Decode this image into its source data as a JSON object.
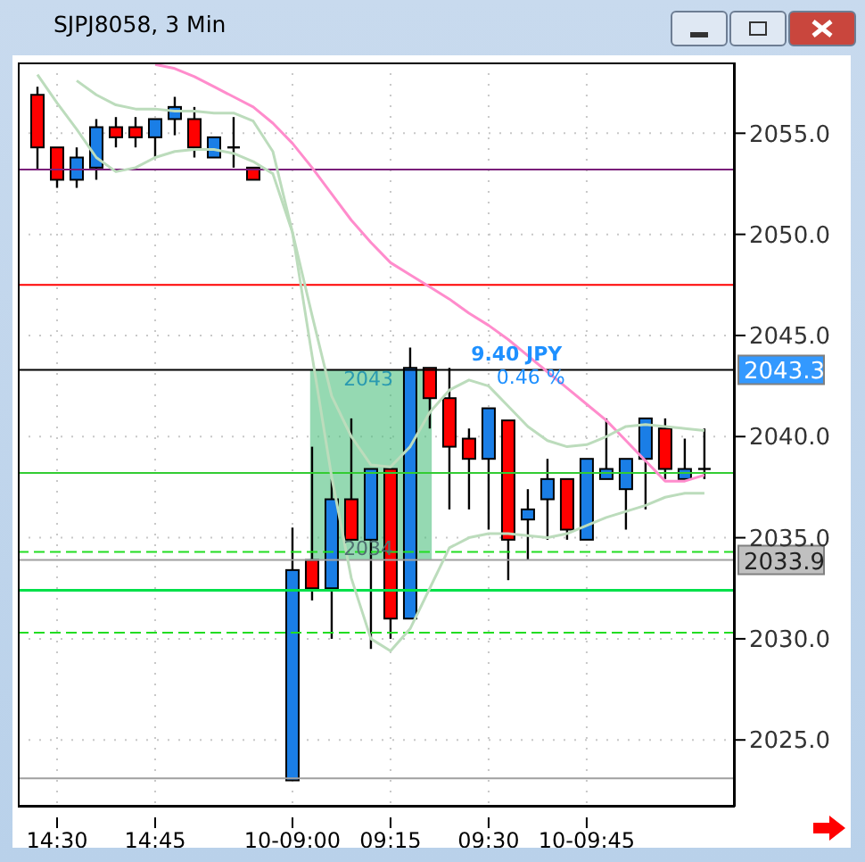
{
  "chart_data": {
    "type": "candlestick",
    "title": "SJPJ8058, 3 Min",
    "categories": [
      null,
      "14:30",
      null,
      null,
      null,
      null,
      "14:45",
      null,
      null,
      null,
      null,
      null,
      null,
      "10-09:00",
      null,
      null,
      null,
      null,
      "09:15",
      null,
      null,
      null,
      null,
      "09:30",
      null,
      null,
      null,
      null,
      "10-09:45",
      null,
      null,
      null,
      null,
      null,
      null
    ],
    "ohlc": [
      [
        2056.9,
        2057.3,
        2053.2,
        2054.3
      ],
      [
        2054.3,
        2054.3,
        2052.3,
        2052.7
      ],
      [
        2052.7,
        2054.3,
        2052.3,
        2053.8
      ],
      [
        2053.3,
        2055.7,
        2052.7,
        2055.3
      ],
      [
        2055.3,
        2055.8,
        2054.3,
        2054.8
      ],
      [
        2055.3,
        2055.8,
        2054.3,
        2054.8
      ],
      [
        2054.8,
        2055.7,
        2053.8,
        2055.7
      ],
      [
        2055.7,
        2056.8,
        2054.9,
        2056.3
      ],
      [
        2055.7,
        2056.3,
        2053.8,
        2054.3
      ],
      [
        2053.8,
        2054.8,
        2053.8,
        2054.8
      ],
      [
        2054.3,
        2055.8,
        2053.3,
        2054.3
      ],
      [
        2053.3,
        2053.3,
        2052.7,
        2052.7
      ],
      null,
      [
        2023.0,
        2035.5,
        2023.0,
        2033.4
      ],
      [
        2033.9,
        2039.5,
        2031.9,
        2032.5
      ],
      [
        2032.5,
        2037.9,
        2030.0,
        2036.9
      ],
      [
        2036.9,
        2040.9,
        2034.9,
        2034.9
      ],
      [
        2034.9,
        2038.4,
        2029.5,
        2038.4
      ],
      [
        2038.4,
        2038.4,
        2030.0,
        2031.0
      ],
      [
        2031.0,
        2044.4,
        2031.0,
        2043.4
      ],
      [
        2043.4,
        2043.4,
        2040.4,
        2041.9
      ],
      [
        2041.9,
        2043.4,
        2036.4,
        2039.5
      ],
      [
        2039.9,
        2040.4,
        2036.4,
        2038.9
      ],
      [
        2038.9,
        2041.4,
        2035.4,
        2041.4
      ],
      [
        2040.8,
        2040.8,
        2032.9,
        2034.9
      ],
      [
        2035.9,
        2037.4,
        2033.9,
        2036.4
      ],
      [
        2036.9,
        2038.9,
        2034.9,
        2037.9
      ],
      [
        2037.9,
        2037.9,
        2034.9,
        2035.4
      ],
      [
        2034.9,
        2038.9,
        2034.9,
        2038.9
      ],
      [
        2037.9,
        2040.9,
        2037.9,
        2038.4
      ],
      [
        2037.4,
        2038.9,
        2035.4,
        2038.9
      ],
      [
        2038.9,
        2040.9,
        2036.4,
        2040.9
      ],
      [
        2040.4,
        2040.9,
        2037.9,
        2038.4
      ],
      [
        2037.9,
        2039.9,
        2037.9,
        2038.4
      ],
      [
        2038.4,
        2040.4,
        2037.9,
        2038.4
      ]
    ],
    "colors": [
      "#ff0000",
      "#ff0000",
      "#1a7ee6",
      "#1a7ee6",
      "#ff0000",
      "#ff0000",
      "#1a7ee6",
      "#1a7ee6",
      "#ff0000",
      "#1a7ee6",
      "#000000",
      "#ff0000",
      null,
      "#1a7ee6",
      "#ff0000",
      "#1a7ee6",
      "#ff0000",
      "#1a7ee6",
      "#ff0000",
      "#1a7ee6",
      "#ff0000",
      "#ff0000",
      "#ff0000",
      "#1a7ee6",
      "#ff0000",
      "#1a7ee6",
      "#1a7ee6",
      "#ff0000",
      "#1a7ee6",
      "#1a7ee6",
      "#1a7ee6",
      "#1a7ee6",
      "#ff0000",
      "#1a7ee6",
      "#000000"
    ],
    "series": [
      {
        "type": "line",
        "color": "#ff8ccc",
        "values": [
          null,
          null,
          null,
          null,
          null,
          null,
          2058.4,
          2058.2,
          2057.8,
          2057.3,
          2056.8,
          2056.3,
          2055.5,
          2054.5,
          2053.3,
          2052.0,
          2050.7,
          2049.6,
          2048.6,
          2048.0,
          2047.4,
          2046.8,
          2046.1,
          2045.5,
          2044.8,
          2044.0,
          2043.2,
          2042.4,
          2041.6,
          2040.8,
          2039.8,
          2038.8,
          2037.8,
          2037.8,
          2038.1
        ]
      },
      {
        "type": "line",
        "color": "#bcdcbc",
        "values": [
          null,
          null,
          2057.6,
          2056.9,
          2056.4,
          2056.2,
          2056.2,
          2056.1,
          2056.1,
          2056.0,
          2056.0,
          2055.6,
          2054.1,
          2050.1,
          2046.0,
          2042.0,
          2040.0,
          2038.6,
          2038.5,
          2039.5,
          2041.2,
          2042.3,
          2042.8,
          2042.5,
          2041.5,
          2040.5,
          2039.8,
          2039.5,
          2039.6,
          2040.0,
          2040.5,
          2040.6,
          2040.5,
          2040.4,
          2040.3
        ]
      },
      {
        "type": "line",
        "color": "#bcdcbc",
        "values": [
          2057.9,
          2056.5,
          2055.2,
          2053.8,
          2053.1,
          2053.3,
          2053.8,
          2054.1,
          2054.2,
          2054.2,
          2054.0,
          2053.6,
          2053.0,
          2050.1,
          2044.0,
          2038.0,
          2033.0,
          2030.0,
          2029.4,
          2030.5,
          2032.5,
          2034.5,
          2035.0,
          2035.2,
          2035.2,
          2035.1,
          2035.0,
          2035.2,
          2035.6,
          2036.0,
          2036.3,
          2036.6,
          2037.0,
          2037.2,
          2037.2
        ]
      }
    ],
    "ylim": [
      2021.7,
      2058.5
    ],
    "yticks": [
      {
        "value": 2025,
        "label": "2025.0"
      },
      {
        "value": 2030,
        "label": "2030.0"
      },
      {
        "value": 2035,
        "label": "2035.0"
      },
      {
        "value": 2040,
        "label": "2040.0"
      },
      {
        "value": 2045,
        "label": "2045.0"
      },
      {
        "value": 2050,
        "label": "2050.0"
      },
      {
        "value": 2055,
        "label": "2055.0"
      }
    ],
    "grid": true,
    "ref_lines": [
      {
        "axis": "y",
        "value": 2053.2,
        "color": "#7a1f7a",
        "line_style": "solid"
      },
      {
        "axis": "y",
        "value": 2047.5,
        "color": "#ff0000",
        "line_style": "solid"
      },
      {
        "axis": "y",
        "value": 2043.3,
        "color": "#000000",
        "line_style": "solid",
        "label": "2043.3"
      },
      {
        "axis": "y",
        "value": 2038.2,
        "color": "#33cc33",
        "line_style": "solid"
      },
      {
        "axis": "y",
        "value": 2034.3,
        "color": "#22dd22",
        "line_style": "dashed"
      },
      {
        "axis": "y",
        "value": 2033.9,
        "color": "#a0a0a0",
        "line_style": "solid",
        "label": "2033.9"
      },
      {
        "axis": "y",
        "value": 2032.4,
        "color": "#00e04a",
        "line_style": "solid"
      },
      {
        "axis": "y",
        "value": 2030.3,
        "color": "#22dd22",
        "line_style": "dashed"
      },
      {
        "axis": "y",
        "value": 2023.1,
        "color": "#a0a0a0",
        "line_style": "solid"
      }
    ],
    "bands": [
      {
        "axis": "y",
        "from": 2033.9,
        "to": 2043.3,
        "color": "#4fbf7f"
      }
    ],
    "annotations": [
      {
        "text": "2043",
        "y": 2043.3
      },
      {
        "text": "2034",
        "y": 2033.9
      },
      {
        "text": "9.40 JPY",
        "y": 2043.3
      },
      {
        "text": "0.46 %",
        "y": 2043.3
      }
    ]
  }
}
